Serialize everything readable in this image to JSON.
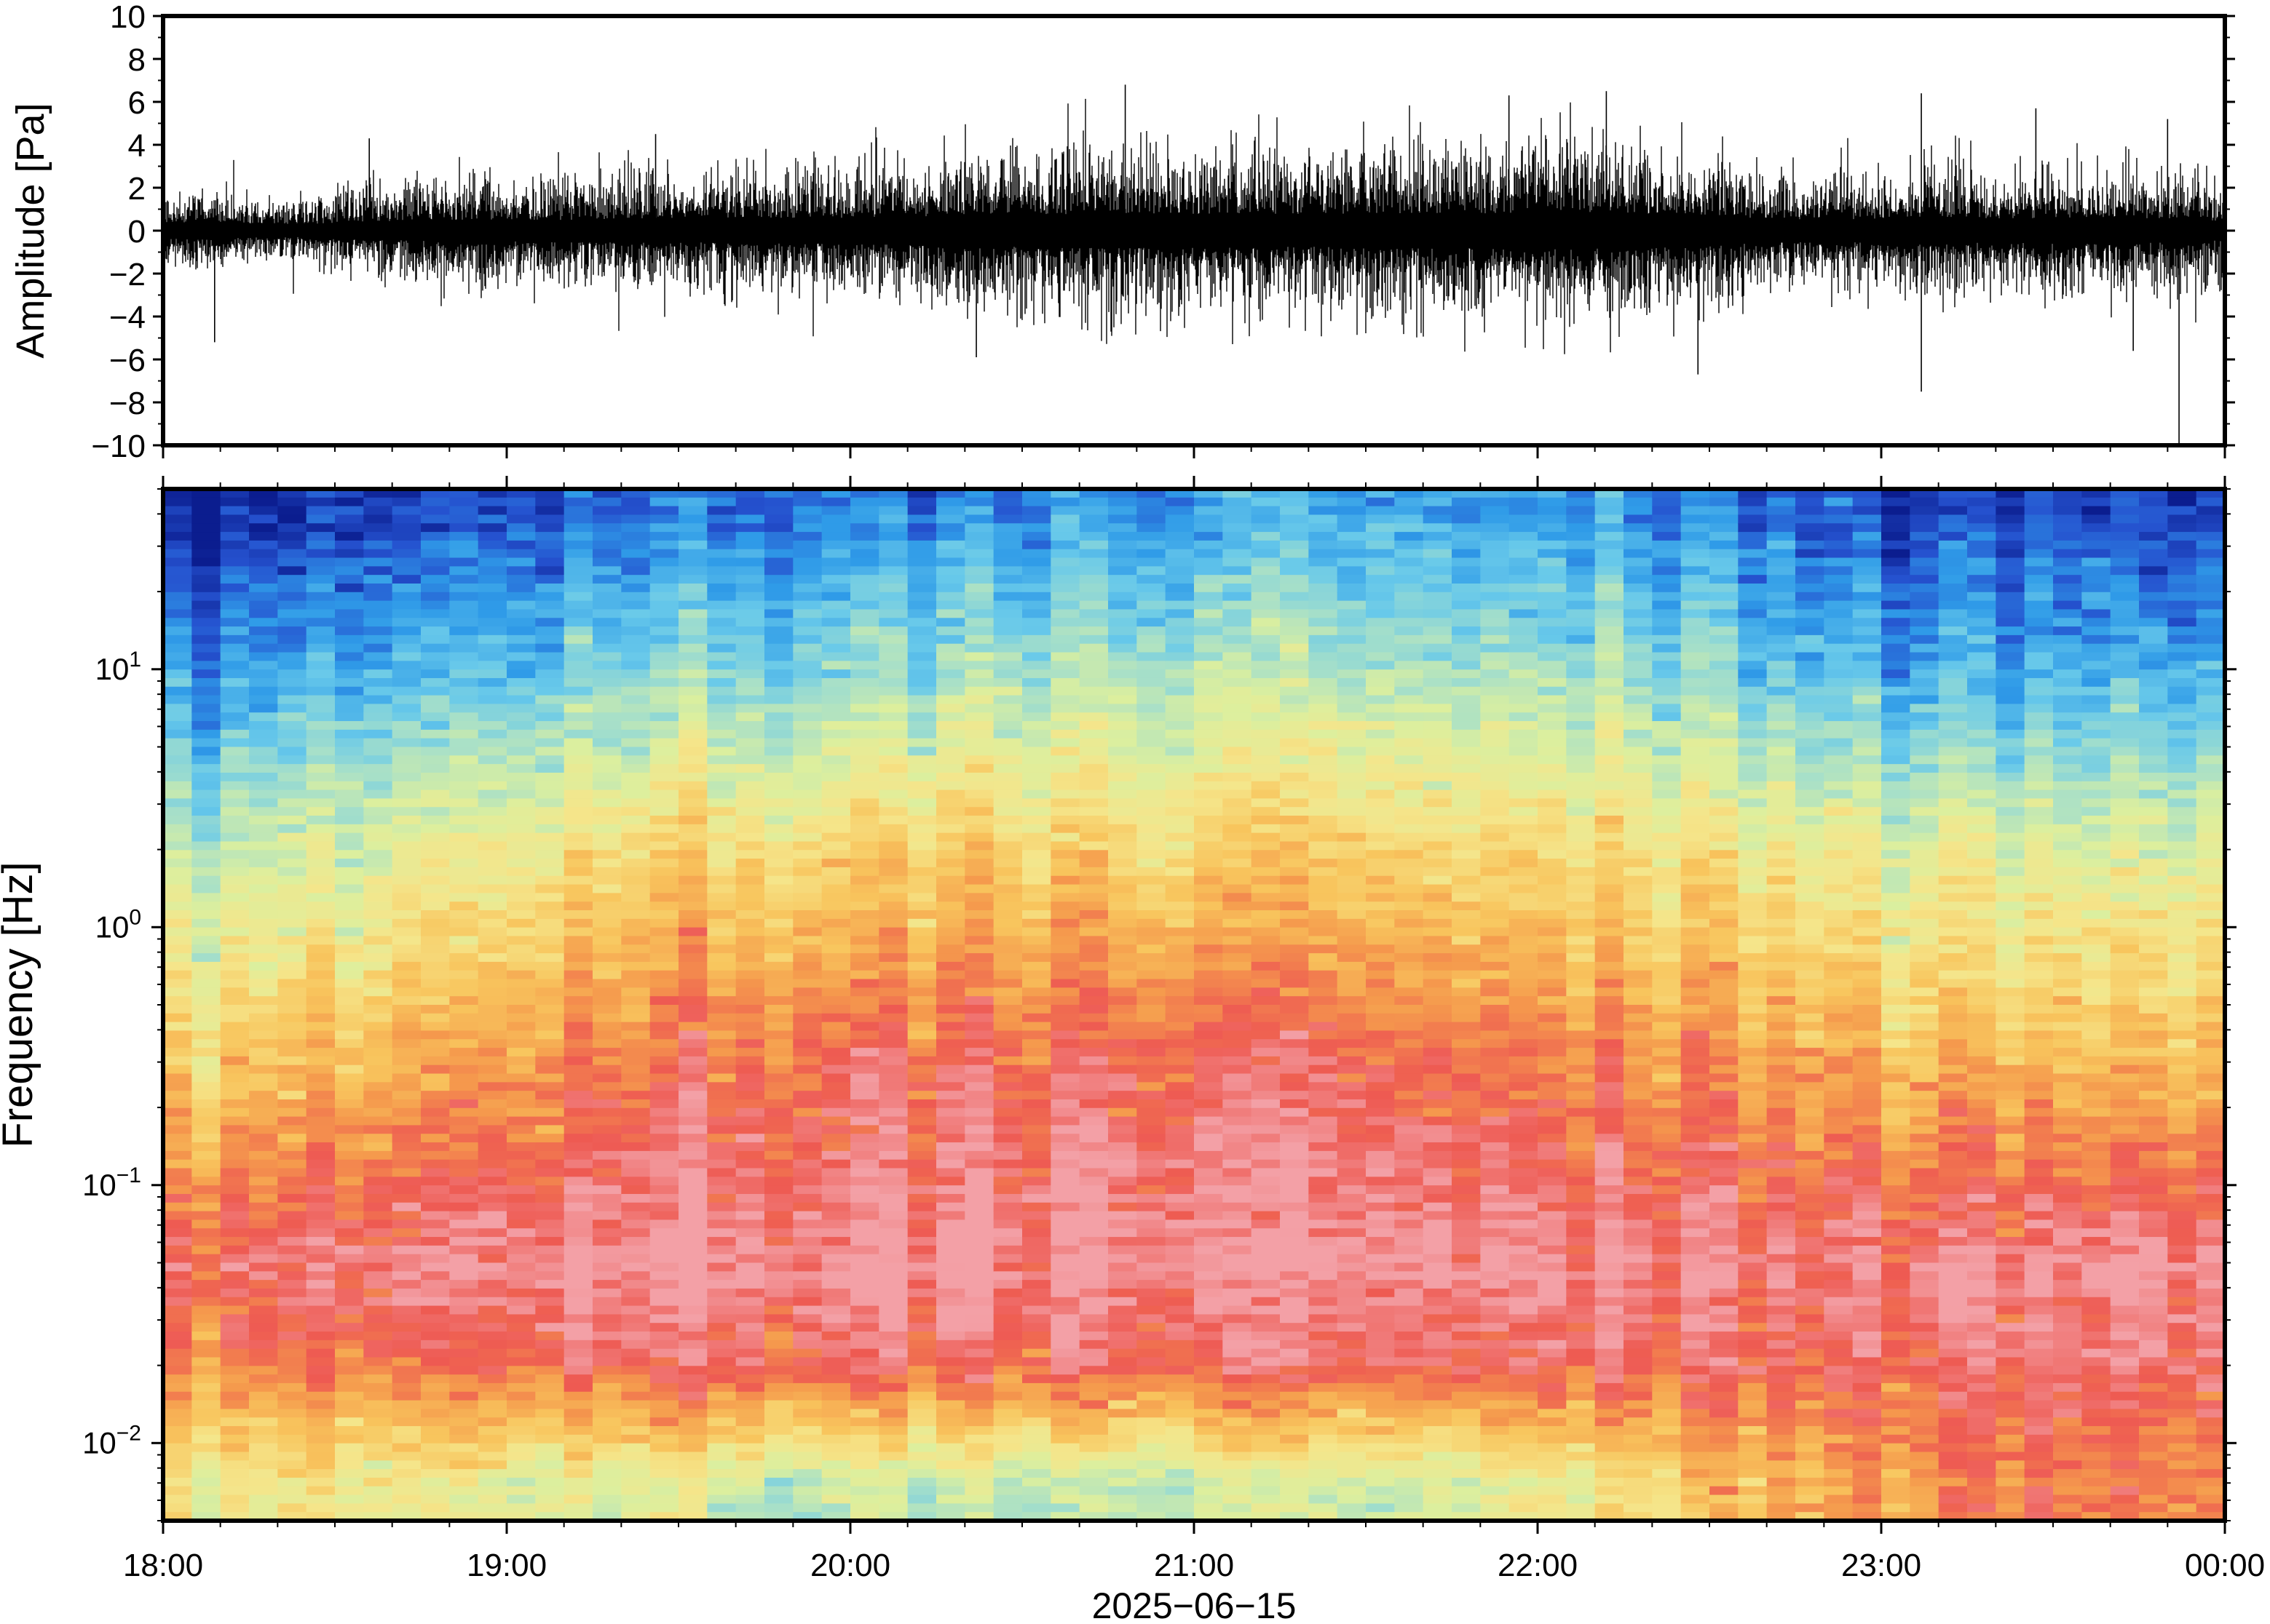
{
  "chart_data": [
    {
      "type": "line",
      "panel": "waveform",
      "ylabel": "Amplitude [Pa]",
      "ylim": [
        -10,
        10
      ],
      "yticks": [
        -10,
        -8,
        -6,
        -4,
        -2,
        0,
        2,
        4,
        6,
        8,
        10
      ],
      "ytick_labels": [
        "−10",
        "−8",
        "−6",
        "−4",
        "−2",
        "0",
        "2",
        "4",
        "6",
        "8",
        "10"
      ],
      "xlim": [
        "18:00",
        "00:00"
      ],
      "grid": false,
      "envelope": {
        "x_hours": [
          18.0,
          18.1,
          18.2,
          18.3,
          18.4,
          18.5,
          18.6,
          18.7,
          18.8,
          18.9,
          19.0,
          19.1,
          19.2,
          19.3,
          19.4,
          19.5,
          19.6,
          19.7,
          19.8,
          19.9,
          20.0,
          20.1,
          20.2,
          20.3,
          20.4,
          20.5,
          20.6,
          20.7,
          20.8,
          20.9,
          21.0,
          21.1,
          21.2,
          21.3,
          21.4,
          21.5,
          21.6,
          21.7,
          21.8,
          21.9,
          22.0,
          22.1,
          22.2,
          22.3,
          22.4,
          22.5,
          22.6,
          22.7,
          22.8,
          22.9,
          23.0,
          23.1,
          23.2,
          23.3,
          23.4,
          23.5,
          23.6,
          23.7,
          23.8,
          23.9,
          24.0
        ],
        "rms_pa": [
          0.7,
          0.8,
          0.7,
          0.6,
          0.6,
          0.7,
          0.9,
          0.9,
          1.0,
          1.0,
          1.0,
          1.0,
          1.0,
          1.0,
          1.1,
          1.1,
          1.1,
          1.2,
          1.2,
          1.2,
          1.2,
          1.3,
          1.3,
          1.5,
          1.5,
          1.5,
          1.5,
          1.6,
          1.6,
          1.6,
          1.5,
          1.5,
          1.5,
          1.5,
          1.5,
          1.6,
          1.6,
          1.6,
          1.6,
          1.6,
          1.7,
          1.7,
          1.6,
          1.6,
          1.5,
          1.4,
          1.2,
          1.1,
          1.0,
          1.0,
          1.1,
          1.3,
          1.2,
          1.1,
          1.1,
          1.2,
          1.2,
          1.3,
          1.1,
          1.2,
          0.8
        ]
      },
      "peaks": [
        {
          "x": "18:09",
          "y": -5.2
        },
        {
          "x": "18:36",
          "y": 4.3
        },
        {
          "x": "19:26",
          "y": 4.5
        },
        {
          "x": "20:48",
          "y": 6.8
        },
        {
          "x": "20:22",
          "y": -5.9
        },
        {
          "x": "21:55",
          "y": 6.3
        },
        {
          "x": "22:12",
          "y": 6.5
        },
        {
          "x": "22:28",
          "y": -6.7
        },
        {
          "x": "23:07",
          "y": 6.4
        },
        {
          "x": "23:07",
          "y": -7.5
        },
        {
          "x": "23:27",
          "y": 5.7
        },
        {
          "x": "23:44",
          "y": -5.6
        },
        {
          "x": "23:50",
          "y": 5.2
        },
        {
          "x": "23:52",
          "y": -10.0
        }
      ]
    },
    {
      "type": "heatmap",
      "panel": "spectrogram",
      "ylabel": "Frequency [Hz]",
      "yscale": "log",
      "ylim": [
        0.005,
        50
      ],
      "yticks": [
        0.01,
        0.1,
        1,
        10
      ],
      "ytick_labels": [
        {
          "base": "10",
          "exp": "−2"
        },
        {
          "base": "10",
          "exp": "−1"
        },
        {
          "base": "10",
          "exp": "0"
        },
        {
          "base": "10",
          "exp": "1"
        }
      ],
      "xlim": [
        "18:00",
        "00:00"
      ],
      "grid": false,
      "colormap": [
        "#0b1d8f",
        "#2552cf",
        "#2f9be8",
        "#68c9ea",
        "#a8e0c8",
        "#dcef9e",
        "#f5e58a",
        "#f8c55d",
        "#f59a4d",
        "#ee5a52",
        "#f3a0a6"
      ],
      "rows": [
        {
          "freq_hz": 45,
          "profile": [
            0.02,
            0.04,
            0.06,
            0.08,
            0.1,
            0.12,
            0.14,
            0.15,
            0.16,
            0.18,
            0.2,
            0.22,
            0.22,
            0.22,
            0.2,
            0.17,
            0.12,
            0.08,
            0.06,
            0.08,
            0.04
          ]
        },
        {
          "freq_hz": 10,
          "profile": [
            0.22,
            0.24,
            0.26,
            0.28,
            0.32,
            0.34,
            0.36,
            0.38,
            0.4,
            0.42,
            0.42,
            0.42,
            0.42,
            0.42,
            0.4,
            0.36,
            0.3,
            0.26,
            0.24,
            0.26,
            0.22
          ]
        },
        {
          "freq_hz": 2,
          "profile": [
            0.48,
            0.5,
            0.52,
            0.56,
            0.6,
            0.62,
            0.64,
            0.66,
            0.66,
            0.66,
            0.66,
            0.66,
            0.66,
            0.66,
            0.64,
            0.62,
            0.58,
            0.54,
            0.52,
            0.52,
            0.5
          ]
        },
        {
          "freq_hz": 0.3,
          "profile": [
            0.7,
            0.72,
            0.74,
            0.78,
            0.82,
            0.86,
            0.88,
            0.9,
            0.9,
            0.9,
            0.9,
            0.9,
            0.88,
            0.86,
            0.84,
            0.82,
            0.78,
            0.74,
            0.72,
            0.72,
            0.7
          ]
        },
        {
          "freq_hz": 0.05,
          "profile": [
            0.96,
            0.96,
            0.97,
            0.98,
            0.99,
            1.0,
            1.0,
            1.0,
            1.0,
            1.0,
            1.0,
            1.0,
            1.0,
            1.0,
            0.99,
            0.98,
            0.97,
            0.98,
            0.99,
            0.99,
            0.97
          ]
        },
        {
          "freq_hz": 0.02,
          "profile": [
            0.86,
            0.86,
            0.87,
            0.88,
            0.9,
            0.91,
            0.91,
            0.91,
            0.91,
            0.91,
            0.91,
            0.91,
            0.91,
            0.92,
            0.92,
            0.93,
            0.93,
            0.93,
            0.93,
            0.92,
            0.9
          ]
        },
        {
          "freq_hz": 0.007,
          "profile": [
            0.62,
            0.6,
            0.58,
            0.55,
            0.52,
            0.5,
            0.48,
            0.47,
            0.46,
            0.46,
            0.47,
            0.48,
            0.5,
            0.55,
            0.62,
            0.7,
            0.78,
            0.82,
            0.84,
            0.84,
            0.8
          ]
        }
      ]
    }
  ],
  "xaxis": {
    "tick_labels": [
      "18:00",
      "19:00",
      "20:00",
      "21:00",
      "22:00",
      "23:00",
      "00:00"
    ],
    "date_label": "2025−06−15"
  },
  "annotations": {
    "waveform_ylabel": "Amplitude [Pa]",
    "spectrogram_ylabel": "Frequency [Hz]"
  }
}
